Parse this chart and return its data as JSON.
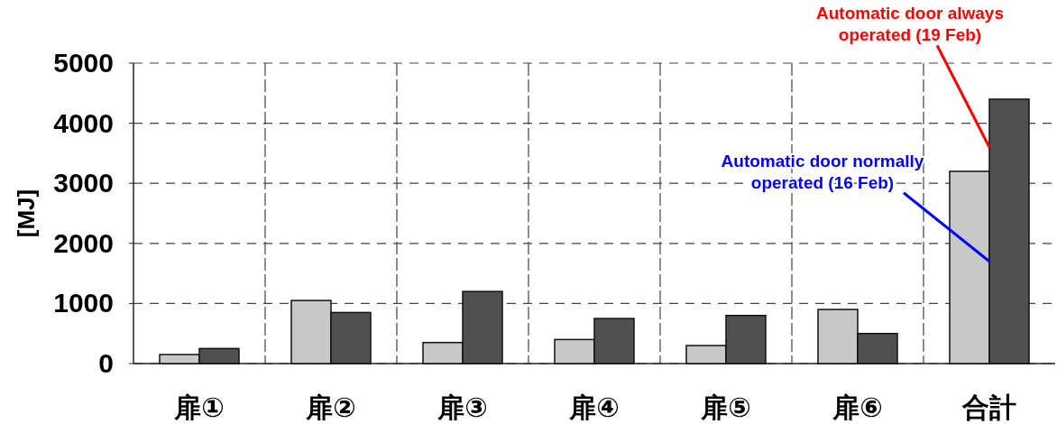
{
  "chart_data": {
    "type": "bar",
    "ylabel": "[MJ]",
    "categories": [
      "扉①",
      "扉②",
      "扉③",
      "扉④",
      "扉⑤",
      "扉⑥",
      "合計"
    ],
    "series": [
      {
        "color": "#c8c8c8",
        "values": [
          150,
          1050,
          350,
          400,
          300,
          900,
          3200
        ]
      },
      {
        "color": "#505050",
        "values": [
          250,
          850,
          1200,
          750,
          800,
          500,
          4400
        ]
      }
    ],
    "ylim": [
      0,
      5000
    ],
    "yticks": [
      0,
      1000,
      2000,
      3000,
      4000,
      5000
    ],
    "grid": true,
    "annotations": [
      {
        "text": "Automatic door always operated (19 Feb)",
        "x": "合計",
        "y": 3600
      },
      {
        "text": "Automatic door normally operated (16 Feb)",
        "x": "合計",
        "y": 1700
      }
    ]
  }
}
